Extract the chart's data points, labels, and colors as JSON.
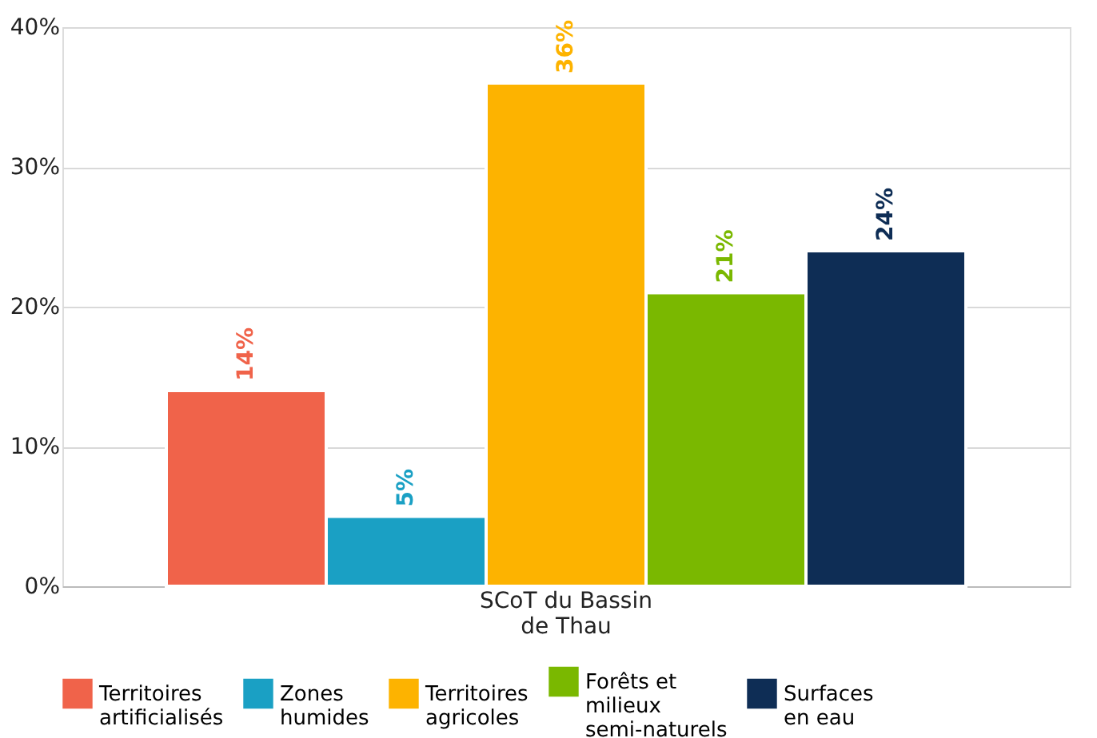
{
  "chart_data": {
    "type": "bar",
    "categories": [
      "SCoT du Bassin de Thau"
    ],
    "series": [
      {
        "name": "Territoires artificialisés",
        "color": "#f0634a",
        "values": [
          14
        ],
        "value_labels": [
          "14%"
        ]
      },
      {
        "name": "Zones humides",
        "color": "#1aa0c4",
        "values": [
          5
        ],
        "value_labels": [
          "5%"
        ]
      },
      {
        "name": "Territoires agricoles",
        "color": "#fdb300",
        "values": [
          36
        ],
        "value_labels": [
          "36%"
        ]
      },
      {
        "name": "Forêts et milieux semi-naturels",
        "color": "#7ab800",
        "values": [
          21
        ],
        "value_labels": [
          "21%"
        ]
      },
      {
        "name": "Surfaces en eau",
        "color": "#0e2d55",
        "values": [
          24
        ],
        "value_labels": [
          "24%"
        ]
      }
    ],
    "ylim": [
      0,
      40
    ],
    "yticks": [
      {
        "value": 0,
        "label": "0%"
      },
      {
        "value": 10,
        "label": "10%"
      },
      {
        "value": 20,
        "label": "20%"
      },
      {
        "value": 30,
        "label": "30%"
      },
      {
        "value": 40,
        "label": "40%"
      }
    ],
    "grid": "y",
    "legend": "bottom"
  }
}
